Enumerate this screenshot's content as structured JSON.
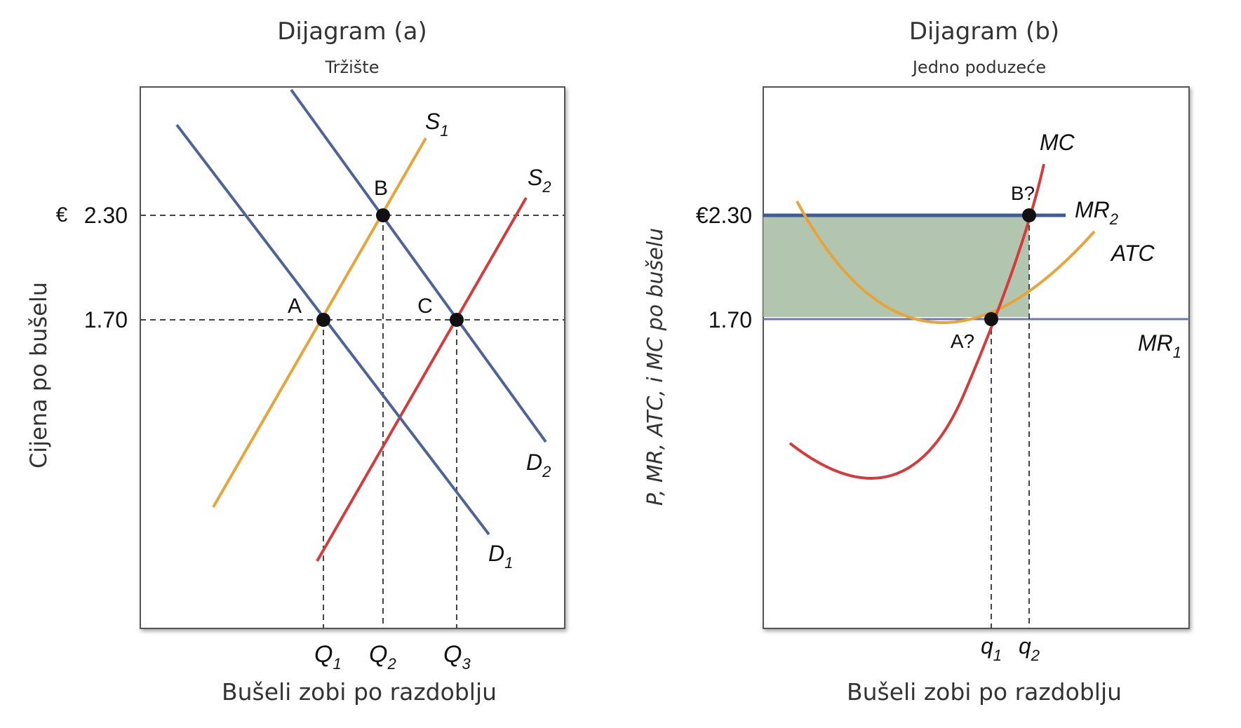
{
  "colors": {
    "supply1": "#e8a438",
    "supply2": "#d63b3b",
    "demand": "#4e6498",
    "mc": "#d63b3b",
    "atc": "#e8a438",
    "mr2": "#3e5d97",
    "mr1": "#6d76b8",
    "profit_area": "#a8bfa6",
    "axis": "#333333",
    "grid": "#444444",
    "text": "#111111"
  },
  "panel_a": {
    "title": "Dijagram (a)",
    "subtitle": "Tržište",
    "ylabel": "Cijena po bušelu",
    "xlabel": "Bušeli zobi po razdoblju",
    "currency": "€",
    "price_high": "2.30",
    "price_low": "1.70",
    "q1": "Q",
    "q1_sub": "1",
    "q2": "Q",
    "q2_sub": "2",
    "q3": "Q",
    "q3_sub": "3",
    "s1": "S",
    "s1_sub": "1",
    "s2": "S",
    "s2_sub": "2",
    "d1": "D",
    "d1_sub": "1",
    "d2": "D",
    "d2_sub": "2",
    "point_a": "A",
    "point_b": "B",
    "point_c": "C"
  },
  "panel_b": {
    "title": "Dijagram (b)",
    "subtitle": "Jedno poduzeće",
    "ylabel": "P, MR, ATC, i MC po bušelu",
    "xlabel": "Bušeli zobi po razdoblju",
    "price_high": "€2.30",
    "price_low": "1.70",
    "q1": "q",
    "q1_sub": "1",
    "q2": "q",
    "q2_sub": "2",
    "mc": "MC",
    "atc": "ATC",
    "mr2": "MR",
    "mr2_sub": "2",
    "mr1": "MR",
    "mr1_sub": "1",
    "point_a": "A?",
    "point_b": "B?"
  },
  "chart_data": [
    {
      "type": "line",
      "title": "Dijagram (a)",
      "subtitle": "Tržište",
      "xlabel": "Bušeli zobi po razdoblju",
      "ylabel": "Cijena po bušelu",
      "y_ticks": [
        1.7,
        2.3
      ],
      "x_ticks": [
        "Q1",
        "Q2",
        "Q3"
      ],
      "series": [
        {
          "name": "S1",
          "kind": "supply"
        },
        {
          "name": "S2",
          "kind": "supply"
        },
        {
          "name": "D1",
          "kind": "demand"
        },
        {
          "name": "D2",
          "kind": "demand"
        }
      ],
      "equilibria": [
        {
          "label": "A",
          "x": "Q1",
          "y": 1.7,
          "curves": [
            "S1",
            "D1"
          ]
        },
        {
          "label": "B",
          "x": "Q2",
          "y": 2.3,
          "curves": [
            "S1",
            "D2"
          ]
        },
        {
          "label": "C",
          "x": "Q3",
          "y": 1.7,
          "curves": [
            "S2",
            "D2"
          ]
        }
      ]
    },
    {
      "type": "line",
      "title": "Dijagram (b)",
      "subtitle": "Jedno poduzeće",
      "xlabel": "Bušeli zobi po razdoblju",
      "ylabel": "P, MR, ATC, i MC po bušelu",
      "y_ticks": [
        1.7,
        2.3
      ],
      "x_ticks": [
        "q1",
        "q2"
      ],
      "series": [
        {
          "name": "MC"
        },
        {
          "name": "ATC"
        },
        {
          "name": "MR2",
          "level": 2.3
        },
        {
          "name": "MR1",
          "level": 1.7
        }
      ],
      "points": [
        {
          "label": "A?",
          "x": "q1",
          "y": 1.7
        },
        {
          "label": "B?",
          "x": "q2",
          "y": 2.3
        }
      ],
      "shaded_area": {
        "from_price": 1.7,
        "to_price": 2.3,
        "to_quantity": "q2"
      }
    }
  ]
}
